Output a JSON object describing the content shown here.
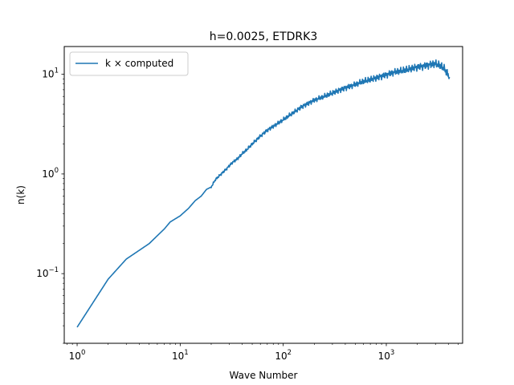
{
  "chart_data": {
    "type": "line",
    "title": "h=0.0025, ETDRK3",
    "xlabel": "Wave Number",
    "ylabel": "n(k)",
    "xscale": "log",
    "yscale": "log",
    "xlim": [
      0.75,
      5500
    ],
    "ylim": [
      0.02,
      19
    ],
    "grid": false,
    "legend_position": "upper-left",
    "x_ticks": [
      {
        "value": 1,
        "base": "10",
        "exp": "0"
      },
      {
        "value": 10,
        "base": "10",
        "exp": "1"
      },
      {
        "value": 100,
        "base": "10",
        "exp": "2"
      },
      {
        "value": 1000,
        "base": "10",
        "exp": "3"
      }
    ],
    "y_ticks": [
      {
        "value": 0.1,
        "base": "10",
        "exp": "−1"
      },
      {
        "value": 1,
        "base": "10",
        "exp": "0"
      },
      {
        "value": 10,
        "base": "10",
        "exp": "1"
      }
    ],
    "series": [
      {
        "name": "k × computed",
        "color": "#1f77b4",
        "x": [
          1,
          2,
          3,
          5,
          7,
          8,
          10,
          12,
          14,
          16,
          18,
          20,
          22,
          25,
          28,
          32,
          36,
          40,
          45,
          50,
          60,
          70,
          80,
          100,
          120,
          150,
          200,
          250,
          300,
          400,
          500,
          600,
          800,
          1000,
          1200,
          1500,
          2000,
          2500,
          3000,
          3300,
          3600,
          3900,
          4100
        ],
        "y": [
          0.029,
          0.088,
          0.14,
          0.2,
          0.28,
          0.33,
          0.38,
          0.45,
          0.54,
          0.6,
          0.7,
          0.74,
          0.88,
          1.0,
          1.12,
          1.3,
          1.42,
          1.6,
          1.78,
          2.0,
          2.4,
          2.75,
          3.0,
          3.5,
          4.0,
          4.7,
          5.5,
          6.0,
          6.5,
          7.3,
          7.9,
          8.5,
          9.2,
          9.9,
          10.5,
          11.0,
          11.8,
          12.3,
          12.8,
          12.3,
          11.6,
          10.3,
          9.4
        ]
      }
    ]
  }
}
